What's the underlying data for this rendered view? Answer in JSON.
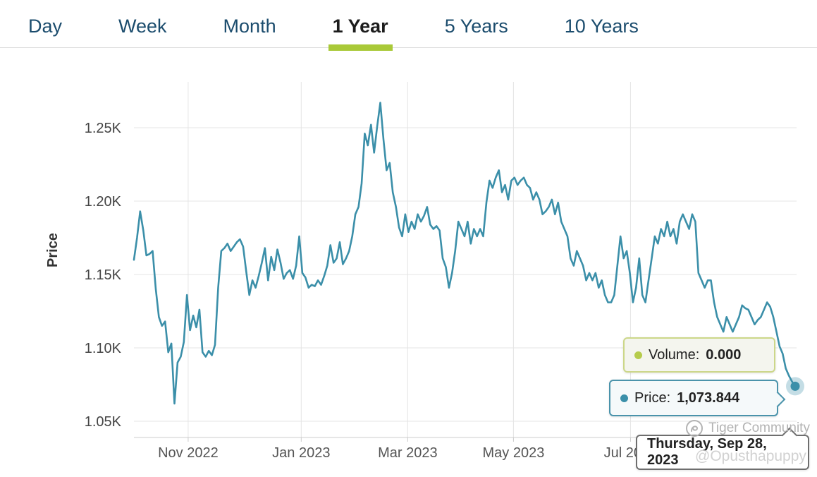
{
  "tabs": {
    "items": [
      {
        "label": "Day"
      },
      {
        "label": "Week"
      },
      {
        "label": "Month"
      },
      {
        "label": "1 Year"
      },
      {
        "label": "5 Years"
      },
      {
        "label": "10 Years"
      }
    ],
    "active_label": "1 Year"
  },
  "colors": {
    "tab_text": "#1b4c6d",
    "tab_active_text": "#1c1c1c",
    "accent_underline": "#a9c938",
    "line": "#3b8fa9",
    "grid": "#e4e4e4",
    "axis_line": "#cccccc",
    "tick_text": "#444444",
    "x_tick_text": "#555555",
    "volume_dot": "#b6cc4c",
    "volume_border": "#ccd789",
    "price_border": "#4a93ab",
    "date_border": "#6e6e6e"
  },
  "tooltips": {
    "volume": {
      "label": "Volume:",
      "value": "0.000"
    },
    "price": {
      "label": "Price:",
      "value": "1,073.844"
    },
    "date": {
      "value": "Thursday, Sep 28, 2023"
    }
  },
  "watermark": {
    "community": "Tiger Community",
    "user": "@Opusthapuppy"
  },
  "chart_data": {
    "type": "line",
    "title": "",
    "xlabel": "",
    "ylabel": "Price",
    "x_range": [
      "Oct 2022",
      "Sep 28, 2023"
    ],
    "ylim": [
      1039,
      1285
    ],
    "grid": true,
    "legend": "none",
    "x_ticks": [
      {
        "label": "Nov 2022",
        "t": 0.082
      },
      {
        "label": "Jan 2023",
        "t": 0.253
      },
      {
        "label": "Mar 2023",
        "t": 0.414
      },
      {
        "label": "May 2023",
        "t": 0.574
      },
      {
        "label": "Jul 2023",
        "t": 0.751
      }
    ],
    "y_ticks": [
      {
        "value": 1050,
        "label": "1.05K"
      },
      {
        "value": 1100,
        "label": "1.10K"
      },
      {
        "value": 1150,
        "label": "1.15K"
      },
      {
        "value": 1200,
        "label": "1.20K"
      },
      {
        "value": 1250,
        "label": "1.25K"
      }
    ],
    "last_point": {
      "date": "Thursday, Sep 28, 2023",
      "price": 1073.844,
      "volume": 0.0
    },
    "series": [
      {
        "name": "Price",
        "color": "#3b8fa9",
        "values": [
          1160,
          1175,
          1193,
          1180,
          1163,
          1164,
          1166,
          1140,
          1121,
          1115,
          1118,
          1097,
          1103,
          1062,
          1090,
          1094,
          1104,
          1136,
          1112,
          1122,
          1114,
          1126,
          1097,
          1094,
          1098,
          1095,
          1102,
          1141,
          1166,
          1168,
          1171,
          1166,
          1169,
          1172,
          1174,
          1169,
          1152,
          1136,
          1146,
          1141,
          1149,
          1158,
          1168,
          1146,
          1162,
          1153,
          1167,
          1158,
          1147,
          1151,
          1153,
          1147,
          1156,
          1176,
          1151,
          1148,
          1141,
          1143,
          1142,
          1146,
          1143,
          1149,
          1156,
          1170,
          1158,
          1161,
          1172,
          1157,
          1161,
          1166,
          1176,
          1191,
          1196,
          1212,
          1246,
          1238,
          1252,
          1233,
          1251,
          1267,
          1242,
          1221,
          1226,
          1206,
          1196,
          1182,
          1176,
          1191,
          1179,
          1186,
          1181,
          1191,
          1186,
          1190,
          1196,
          1184,
          1181,
          1183,
          1180,
          1161,
          1155,
          1141,
          1151,
          1166,
          1186,
          1181,
          1176,
          1186,
          1171,
          1181,
          1176,
          1181,
          1176,
          1199,
          1214,
          1209,
          1216,
          1221,
          1206,
          1211,
          1201,
          1214,
          1216,
          1211,
          1214,
          1216,
          1211,
          1209,
          1201,
          1206,
          1201,
          1191,
          1193,
          1196,
          1201,
          1191,
          1199,
          1186,
          1181,
          1176,
          1161,
          1156,
          1166,
          1161,
          1156,
          1146,
          1151,
          1146,
          1151,
          1141,
          1146,
          1136,
          1131,
          1131,
          1136,
          1156,
          1176,
          1161,
          1166,
          1151,
          1131,
          1141,
          1161,
          1136,
          1131,
          1146,
          1161,
          1176,
          1171,
          1181,
          1176,
          1186,
          1176,
          1181,
          1171,
          1186,
          1191,
          1186,
          1181,
          1191,
          1186,
          1151,
          1146,
          1141,
          1146,
          1146,
          1131,
          1121,
          1116,
          1111,
          1121,
          1116,
          1111,
          1116,
          1121,
          1129,
          1127,
          1126,
          1121,
          1116,
          1119,
          1121,
          1126,
          1131,
          1128,
          1121,
          1111,
          1101,
          1096,
          1086,
          1081,
          1077,
          1073.844
        ]
      }
    ]
  }
}
